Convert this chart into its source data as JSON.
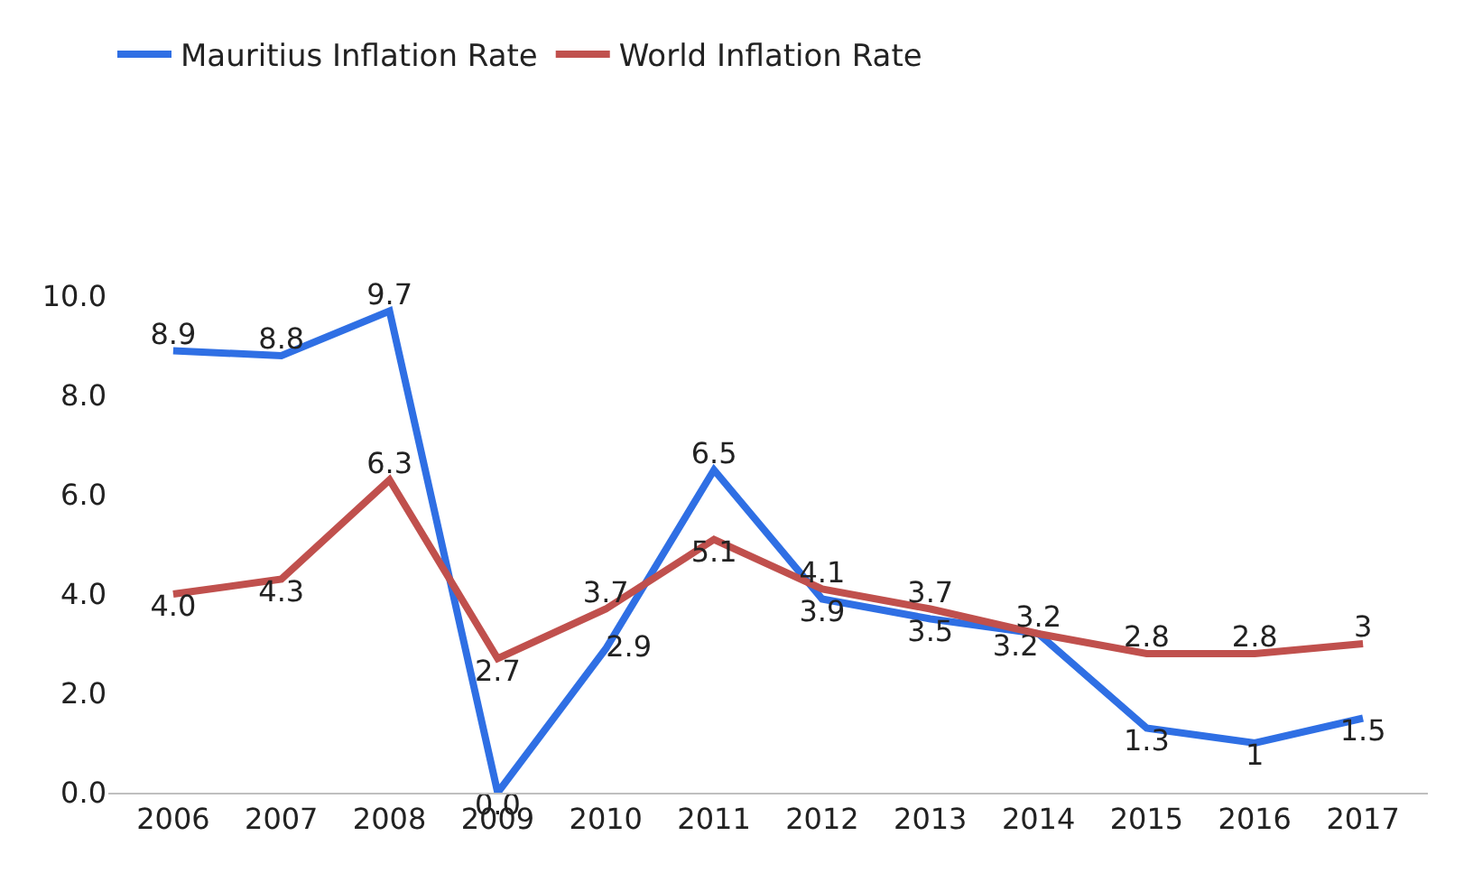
{
  "chart_data": {
    "type": "line",
    "categories": [
      "2006",
      "2007",
      "2008",
      "2009",
      "2010",
      "2011",
      "2012",
      "2013",
      "2014",
      "2015",
      "2016",
      "2017"
    ],
    "series": [
      {
        "name": "Mauritius Inflation Rate",
        "color": "#2f6fe4",
        "values": [
          8.9,
          8.8,
          9.7,
          0.0,
          2.9,
          6.5,
          3.9,
          3.5,
          3.2,
          1.3,
          1,
          1.5
        ],
        "value_labels": [
          "8.9",
          "8.8",
          "9.7",
          "0.0",
          "2.9",
          "6.5",
          "3.9",
          "3.5",
          "3.2",
          "1.3",
          "1",
          "1.5"
        ]
      },
      {
        "name": "World Inflation Rate",
        "color": "#c0504d",
        "values": [
          4.0,
          4.3,
          6.3,
          2.7,
          3.7,
          5.1,
          4.1,
          3.7,
          3.2,
          2.8,
          2.8,
          3
        ],
        "value_labels": [
          "4.0",
          "4.3",
          "6.3",
          "2.7",
          "3.7",
          "5.1",
          "4.1",
          "3.7",
          "3.2",
          "2.8",
          "2.8",
          "3"
        ]
      }
    ],
    "ylim": [
      0,
      10
    ],
    "yticks": [
      {
        "value": 0,
        "label": "0.0"
      },
      {
        "value": 2,
        "label": "2.0"
      },
      {
        "value": 4,
        "label": "4.0"
      },
      {
        "value": 6,
        "label": "6.0"
      },
      {
        "value": 8,
        "label": "8.0"
      },
      {
        "value": 10,
        "label": "10.0"
      }
    ],
    "legend": "top left",
    "marker": "none",
    "line_style": "solid"
  }
}
